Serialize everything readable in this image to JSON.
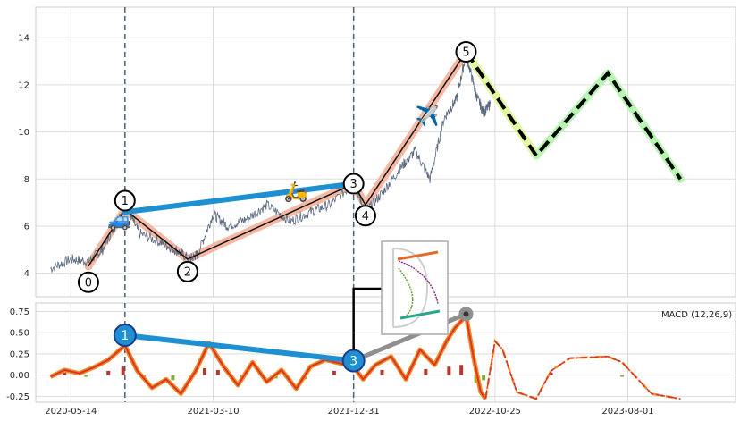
{
  "chart_data": [
    {
      "type": "line",
      "y_ticks": [
        4,
        6,
        8,
        10,
        12,
        14
      ],
      "ylim": [
        3.0,
        15.3
      ],
      "x_ticks": [
        {
          "date": "2020-05-14",
          "label": "2020-05-14"
        },
        {
          "date": "2021-03-10",
          "label": "2021-03-10"
        },
        {
          "date": "2021-12-31",
          "label": "2021-12-31"
        },
        {
          "date": "2022-10-25",
          "label": "2022-10-25"
        },
        {
          "date": "2023-08-01",
          "label": "2023-08-01"
        }
      ],
      "xlim": [
        "2020-03-01",
        "2024-03-15"
      ],
      "price_series": [
        {
          "date": "2020-04-01",
          "value": 4.2
        },
        {
          "date": "2020-05-14",
          "value": 4.6
        },
        {
          "date": "2020-06-20",
          "value": 4.5
        },
        {
          "date": "2020-07-20",
          "value": 5.0
        },
        {
          "date": "2020-08-20",
          "value": 6.2
        },
        {
          "date": "2020-09-05",
          "value": 6.9
        },
        {
          "date": "2020-10-05",
          "value": 5.7
        },
        {
          "date": "2020-11-20",
          "value": 5.3
        },
        {
          "date": "2020-12-20",
          "value": 5.0
        },
        {
          "date": "2021-01-20",
          "value": 4.6
        },
        {
          "date": "2021-02-05",
          "value": 4.8
        },
        {
          "date": "2021-03-10",
          "value": 6.5
        },
        {
          "date": "2021-04-10",
          "value": 6.0
        },
        {
          "date": "2021-05-20",
          "value": 6.3
        },
        {
          "date": "2021-07-01",
          "value": 6.9
        },
        {
          "date": "2021-08-20",
          "value": 6.2
        },
        {
          "date": "2021-10-01",
          "value": 6.6
        },
        {
          "date": "2021-11-10",
          "value": 6.9
        },
        {
          "date": "2021-12-31",
          "value": 7.8
        },
        {
          "date": "2022-01-25",
          "value": 6.6
        },
        {
          "date": "2022-03-01",
          "value": 7.4
        },
        {
          "date": "2022-04-10",
          "value": 8.5
        },
        {
          "date": "2022-05-10",
          "value": 9.2
        },
        {
          "date": "2022-06-10",
          "value": 8.0
        },
        {
          "date": "2022-07-10",
          "value": 10.6
        },
        {
          "date": "2022-08-05",
          "value": 11.4
        },
        {
          "date": "2022-08-25",
          "value": 13.3
        },
        {
          "date": "2022-09-15",
          "value": 11.6
        },
        {
          "date": "2022-10-01",
          "value": 10.8
        },
        {
          "date": "2022-10-15",
          "value": 11.2
        }
      ],
      "zigzag_points": [
        {
          "label": "0",
          "date": "2020-06-20",
          "value": 4.3
        },
        {
          "label": "1",
          "date": "2020-09-05",
          "value": 6.7
        },
        {
          "label": "2",
          "date": "2021-01-15",
          "value": 4.6
        },
        {
          "label": "3",
          "date": "2021-12-31",
          "value": 7.8
        },
        {
          "label": "4",
          "date": "2022-01-25",
          "value": 6.9
        },
        {
          "label": "5",
          "date": "2022-08-25",
          "value": 13.4
        }
      ],
      "projection_points": [
        {
          "date": "2022-08-25",
          "value": 13.4
        },
        {
          "date": "2023-01-20",
          "value": 9.0
        },
        {
          "date": "2023-06-20",
          "value": 12.5
        },
        {
          "date": "2023-11-20",
          "value": 8.0
        }
      ],
      "blue_trendline": [
        {
          "date": "2020-09-05",
          "value": 6.6
        },
        {
          "date": "2021-12-31",
          "value": 7.8
        }
      ],
      "vertical_markers": [
        "2020-09-05",
        "2021-12-31"
      ],
      "emojis": [
        {
          "name": "car-icon",
          "glyph": "🚙",
          "date": "2020-08-25",
          "value": 6.0
        },
        {
          "name": "scooter-icon",
          "glyph": "🛵",
          "date": "2021-09-01",
          "value": 7.2
        },
        {
          "name": "airplane-icon",
          "glyph": "✈️",
          "date": "2022-06-05",
          "value": 10.4
        }
      ],
      "colors": {
        "price": "#5a6a80",
        "zigzag_band": "#f5b8a3",
        "blue": "#1e8fd1",
        "projection_band_1": "#e1f7a2",
        "projection_band_2": "#b7f5b0",
        "vline": "#4a6178"
      }
    },
    {
      "type": "bar",
      "legend": "MACD (12,26,9)",
      "y_ticks": [
        -0.25,
        0.0,
        0.25,
        0.5,
        0.75
      ],
      "ylim": [
        -0.32,
        0.85
      ],
      "macd_line": [
        {
          "date": "2020-04-01",
          "value": -0.02
        },
        {
          "date": "2020-05-01",
          "value": 0.06
        },
        {
          "date": "2020-06-01",
          "value": 0.02
        },
        {
          "date": "2020-07-01",
          "value": 0.09
        },
        {
          "date": "2020-08-01",
          "value": 0.18
        },
        {
          "date": "2020-09-05",
          "value": 0.35
        },
        {
          "date": "2020-10-01",
          "value": 0.05
        },
        {
          "date": "2020-11-01",
          "value": -0.15
        },
        {
          "date": "2020-12-01",
          "value": -0.05
        },
        {
          "date": "2021-01-01",
          "value": -0.22
        },
        {
          "date": "2021-02-01",
          "value": 0.05
        },
        {
          "date": "2021-03-01",
          "value": 0.38
        },
        {
          "date": "2021-04-01",
          "value": 0.1
        },
        {
          "date": "2021-05-01",
          "value": -0.12
        },
        {
          "date": "2021-06-01",
          "value": 0.15
        },
        {
          "date": "2021-07-01",
          "value": -0.08
        },
        {
          "date": "2021-08-01",
          "value": 0.06
        },
        {
          "date": "2021-09-01",
          "value": -0.16
        },
        {
          "date": "2021-10-01",
          "value": 0.1
        },
        {
          "date": "2021-11-01",
          "value": 0.18
        },
        {
          "date": "2021-12-31",
          "value": 0.1
        },
        {
          "date": "2022-01-20",
          "value": -0.05
        },
        {
          "date": "2022-02-15",
          "value": 0.12
        },
        {
          "date": "2022-03-20",
          "value": 0.22
        },
        {
          "date": "2022-04-20",
          "value": -0.05
        },
        {
          "date": "2022-05-20",
          "value": 0.3
        },
        {
          "date": "2022-06-20",
          "value": 0.12
        },
        {
          "date": "2022-07-15",
          "value": 0.4
        },
        {
          "date": "2022-08-01",
          "value": 0.55
        },
        {
          "date": "2022-08-25",
          "value": 0.7
        },
        {
          "date": "2022-09-10",
          "value": 0.2
        },
        {
          "date": "2022-09-25",
          "value": -0.2
        },
        {
          "date": "2022-10-05",
          "value": -0.28
        }
      ],
      "projection_line": [
        {
          "date": "2022-10-05",
          "value": -0.28
        },
        {
          "date": "2022-10-25",
          "value": 0.4
        },
        {
          "date": "2022-11-10",
          "value": 0.3
        },
        {
          "date": "2022-12-10",
          "value": -0.2
        },
        {
          "date": "2023-01-20",
          "value": -0.28
        },
        {
          "date": "2023-02-20",
          "value": 0.05
        },
        {
          "date": "2023-04-01",
          "value": 0.2
        },
        {
          "date": "2023-06-20",
          "value": 0.22
        },
        {
          "date": "2023-07-20",
          "value": 0.15
        },
        {
          "date": "2023-09-20",
          "value": -0.22
        },
        {
          "date": "2023-11-20",
          "value": -0.28
        }
      ],
      "histogram": [
        {
          "date": "2020-05-01",
          "value": 0.03
        },
        {
          "date": "2020-06-15",
          "value": -0.02
        },
        {
          "date": "2020-08-01",
          "value": 0.05
        },
        {
          "date": "2020-09-01",
          "value": 0.1
        },
        {
          "date": "2020-10-15",
          "value": -0.05
        },
        {
          "date": "2020-12-15",
          "value": -0.06
        },
        {
          "date": "2021-02-20",
          "value": 0.08
        },
        {
          "date": "2021-03-20",
          "value": 0.06
        },
        {
          "date": "2021-05-10",
          "value": -0.05
        },
        {
          "date": "2021-07-20",
          "value": -0.04
        },
        {
          "date": "2021-09-20",
          "value": -0.05
        },
        {
          "date": "2021-11-20",
          "value": 0.05
        },
        {
          "date": "2022-01-15",
          "value": -0.03
        },
        {
          "date": "2022-03-01",
          "value": 0.06
        },
        {
          "date": "2022-04-20",
          "value": -0.05
        },
        {
          "date": "2022-06-01",
          "value": 0.07
        },
        {
          "date": "2022-07-20",
          "value": 0.1
        },
        {
          "date": "2022-08-15",
          "value": 0.12
        },
        {
          "date": "2022-09-15",
          "value": -0.1
        },
        {
          "date": "2022-10-01",
          "value": -0.06
        },
        {
          "date": "2023-02-20",
          "value": 0.03
        },
        {
          "date": "2023-07-20",
          "value": -0.02
        }
      ],
      "blue_trendline": [
        {
          "date": "2020-09-05",
          "value": 0.47
        },
        {
          "date": "2021-12-31",
          "value": 0.17
        }
      ],
      "markers": [
        {
          "label": "1",
          "date": "2020-09-05",
          "value": 0.47
        },
        {
          "label": "3",
          "date": "2021-12-31",
          "value": 0.17
        }
      ],
      "gray_segment": [
        {
          "date": "2021-12-31",
          "value": 0.17
        },
        {
          "date": "2022-08-25",
          "value": 0.72
        }
      ],
      "colors": {
        "macd": "#d4382c",
        "signal": "#f58a1f",
        "hist_pos": "#b03a2e",
        "hist_neg": "#7fae3a",
        "blue": "#1e8fd1",
        "gray": "#8f8f8f"
      }
    }
  ]
}
